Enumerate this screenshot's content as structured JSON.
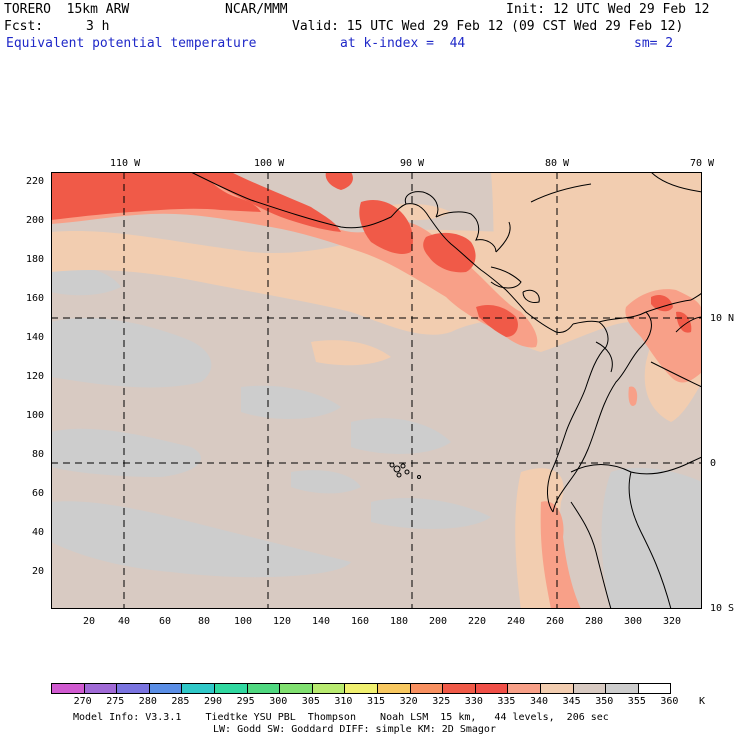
{
  "header": {
    "model": "TORERO  15km ARW",
    "center": "NCAR/MMM",
    "init": "Init: 12 UTC Wed 29 Feb 12",
    "fcst_label": "Fcst:",
    "fcst_value": "3 h",
    "valid": "Valid: 15 UTC Wed 29 Feb 12 (09 CST Wed 29 Feb 12)",
    "field": "Equivalent potential temperature",
    "level": "at k-index =  44",
    "smoothing": "sm= 2"
  },
  "map": {
    "top_lon_labels": [
      "110 W",
      "100 W",
      "90 W",
      "80 W",
      "70 W"
    ],
    "right_lat_labels": [
      "10 N",
      "0",
      "10 S"
    ],
    "y_ticks": [
      "220",
      "200",
      "180",
      "160",
      "140",
      "120",
      "100",
      "80",
      "60",
      "40",
      "20"
    ],
    "x_ticks": [
      "20",
      "40",
      "60",
      "80",
      "100",
      "120",
      "140",
      "160",
      "180",
      "200",
      "220",
      "240",
      "260",
      "280",
      "300",
      "320"
    ]
  },
  "colorbar": {
    "labels": [
      "270",
      "275",
      "280",
      "285",
      "290",
      "295",
      "300",
      "305",
      "310",
      "315",
      "320",
      "325",
      "330",
      "335",
      "340",
      "345",
      "350",
      "355",
      "360"
    ],
    "unit": "K",
    "colors": [
      "#d05ad0",
      "#a06ad6",
      "#7a74e0",
      "#5a8ee6",
      "#30c8c8",
      "#30d8a0",
      "#50d880",
      "#80e070",
      "#b8ea70",
      "#f0f070",
      "#f8c860",
      "#f89060",
      "#f05a48",
      "#f05048",
      "#f8a088",
      "#f2cdb0",
      "#d8cac2",
      "#cdcdcd",
      "#ffffff"
    ]
  },
  "footer": {
    "line1": "Model Info: V3.3.1    Tiedtke YSU PBL  Thompson    Noah LSM  15 km,   44 levels,  206 sec",
    "line2": "LW: Godd SW: Goddard DIFF: simple KM: 2D Smagor"
  }
}
